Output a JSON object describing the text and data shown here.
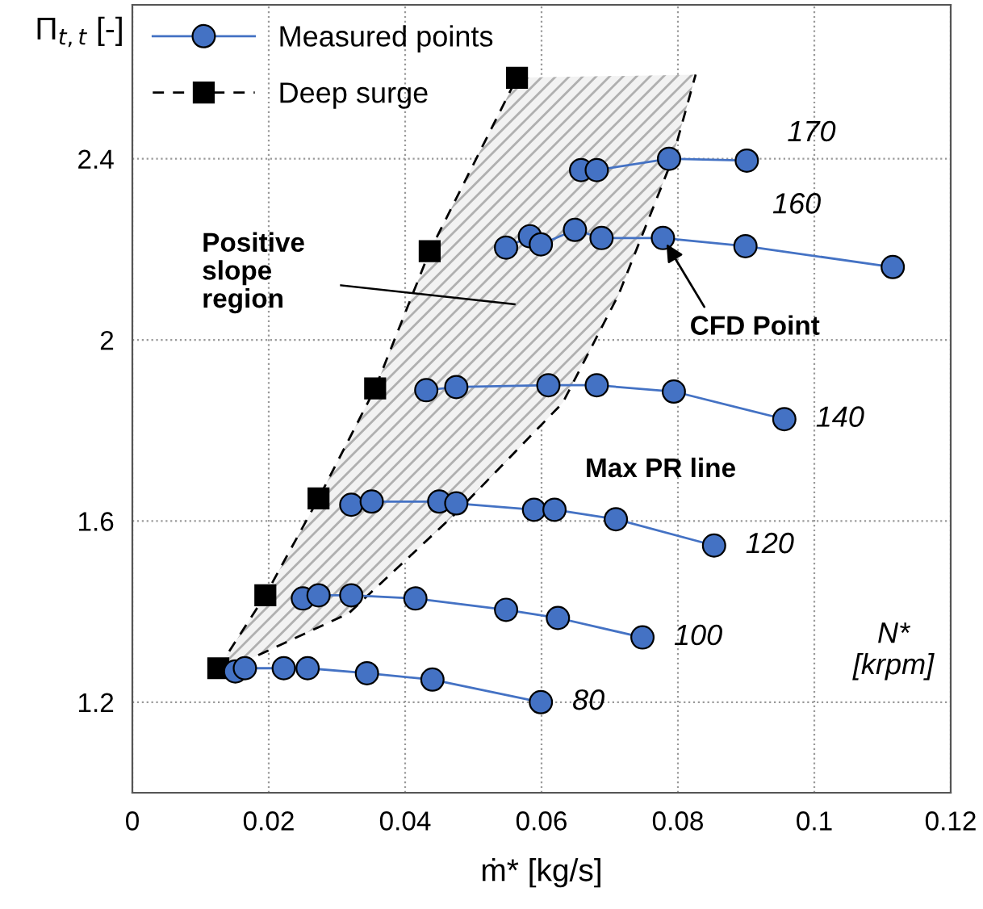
{
  "chart_data": {
    "type": "line",
    "xlabel": "ṁ* [kg/s]",
    "ylabel": "Π$_{t,t}$ [-]",
    "xlim": [
      0,
      0.12
    ],
    "ylim": [
      1.0,
      2.74
    ],
    "xticks": [
      0,
      0.02,
      0.04,
      0.06,
      0.08,
      0.1,
      0.12
    ],
    "yticks": [
      1.2,
      1.6,
      2,
      2.4
    ],
    "grid": true,
    "legend": "top left",
    "series": [
      {
        "name": "Measured points",
        "color": "#4472c4",
        "marker": "circle",
        "line_style": "solid",
        "x": [
          0.0658,
          0.0681,
          0.0787,
          0.0901,
          null,
          0.0548,
          0.0583,
          0.0599,
          0.0649,
          0.0688,
          0.0778,
          0.0899,
          0.1115,
          null,
          0.0431,
          0.0475,
          0.061,
          0.0681,
          0.0794,
          0.0956,
          null,
          0.0321,
          0.0351,
          0.045,
          0.0475,
          0.0589,
          0.0619,
          0.0709,
          0.0853,
          null,
          0.025,
          0.0273,
          0.0321,
          0.0415,
          0.0548,
          0.0624,
          0.0748,
          null,
          0.0151,
          0.0165,
          0.0222,
          0.0257,
          0.0344,
          0.044,
          0.0599
        ],
        "values": [
          2.375,
          2.375,
          2.4,
          2.396,
          null,
          2.204,
          2.229,
          2.211,
          2.243,
          2.225,
          2.225,
          2.207,
          2.161,
          null,
          1.889,
          1.896,
          1.9,
          1.9,
          1.886,
          1.825,
          null,
          1.636,
          1.643,
          1.643,
          1.639,
          1.625,
          1.625,
          1.604,
          1.546,
          null,
          1.429,
          1.436,
          1.436,
          1.429,
          1.404,
          1.386,
          1.343,
          null,
          1.268,
          1.275,
          1.275,
          1.275,
          1.264,
          1.25,
          1.2
        ]
      },
      {
        "name": "Deep surge",
        "color": "#000000",
        "marker": "square",
        "line_style": "dashed",
        "x": [
          0.0126,
          0.0195,
          0.0273,
          0.0356,
          0.0436,
          0.0564
        ],
        "values": [
          1.275,
          1.436,
          1.65,
          1.893,
          2.196,
          2.579
        ]
      },
      {
        "color": "#000000",
        "marker": "none",
        "line_style": "dashed",
        "x": [
          0.013,
          0.0163,
          0.0317,
          0.047,
          0.0631,
          0.0713,
          0.0791,
          0.0826
        ],
        "values": [
          1.27,
          1.289,
          1.396,
          1.611,
          1.861,
          2.1,
          2.396,
          2.586
        ]
      }
    ],
    "annotations": [
      {
        "text": "170",
        "x": 0.0901,
        "y": 2.396
      },
      {
        "text": "160",
        "x": 0.0899,
        "y": 2.207
      },
      {
        "text": "140",
        "x": 0.0956,
        "y": 1.825
      },
      {
        "text": "120",
        "x": 0.0853,
        "y": 1.546
      },
      {
        "text": "100",
        "x": 0.0748,
        "y": 1.343
      },
      {
        "text": "80",
        "x": 0.0599,
        "y": 1.2
      },
      "Positive\nslope\nregion",
      {
        "text": "CFD Point",
        "x": 0.0778,
        "y": 2.225
      },
      {
        "text": "Max PR line",
        "x": 0.0631,
        "y": 1.861
      },
      "N*\n[krpm]"
    ]
  }
}
